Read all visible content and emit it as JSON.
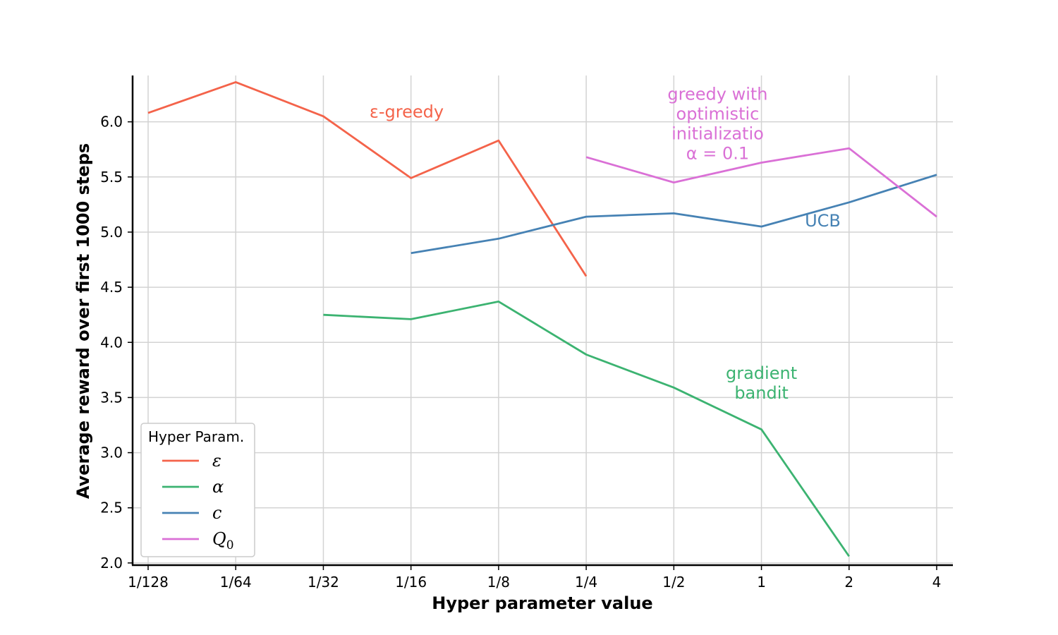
{
  "chart_data": {
    "type": "line",
    "title": "",
    "xlabel": "Hyper parameter value",
    "ylabel": "Average reward over first 1000 steps",
    "categories": [
      "1/128",
      "1/64",
      "1/32",
      "1/16",
      "1/8",
      "1/4",
      "1/2",
      "1",
      "2",
      "4"
    ],
    "yticks": [
      "2.0",
      "2.5",
      "3.0",
      "3.5",
      "4.0",
      "4.5",
      "5.0",
      "5.5",
      "6.0"
    ],
    "ylim": [
      1.98,
      6.42
    ],
    "grid": true,
    "legend_title": "Hyper Param.",
    "legend_position": "lower-left",
    "series": [
      {
        "key": "epsilon",
        "name": "ε",
        "color": "#f4634a",
        "values": [
          6.08,
          6.36,
          6.05,
          5.49,
          5.83,
          4.6,
          null,
          null,
          null,
          null
        ]
      },
      {
        "key": "alpha",
        "name": "α",
        "color": "#3cb371",
        "values": [
          null,
          null,
          4.25,
          4.21,
          4.37,
          3.89,
          3.59,
          3.21,
          2.06,
          null
        ]
      },
      {
        "key": "c",
        "name": "c",
        "color": "#4682b4",
        "values": [
          null,
          null,
          null,
          4.81,
          4.94,
          5.14,
          5.17,
          5.05,
          5.27,
          5.52
        ]
      },
      {
        "key": "q0",
        "name": "Q",
        "name_subscript": "0",
        "color": "#da70d6",
        "values": [
          null,
          null,
          null,
          null,
          null,
          5.68,
          5.45,
          5.63,
          5.76,
          5.14
        ]
      }
    ],
    "annotations": [
      {
        "series": "epsilon",
        "lines": [
          "ε-greedy"
        ],
        "x": "1/32",
        "x_offset": 0.95,
        "y": 6.04
      },
      {
        "series": "q0",
        "lines": [
          "greedy with",
          "optimistic",
          "initializatio",
          "α = 0.1"
        ],
        "x": "1/2",
        "x_offset": 0.5,
        "y": 6.2
      },
      {
        "series": "c",
        "lines": [
          "UCB"
        ],
        "x": "1",
        "x_offset": 0.7,
        "y": 5.05
      },
      {
        "series": "alpha",
        "lines": [
          "gradient",
          "bandit"
        ],
        "x": "1",
        "x_offset": 0.0,
        "y": 3.67
      }
    ]
  }
}
